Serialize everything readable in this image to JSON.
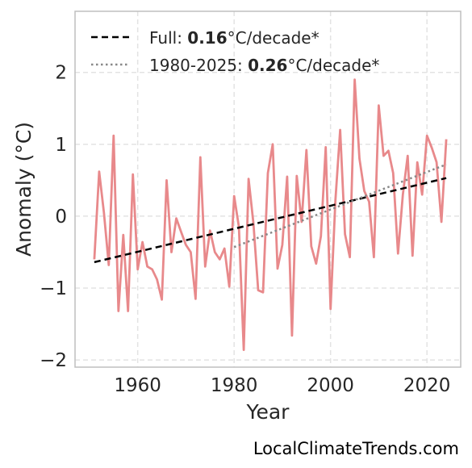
{
  "chart_data": {
    "type": "line",
    "title": "",
    "xlabel": "Year",
    "ylabel": "Anomaly (°C)",
    "xlim": [
      1947,
      2027
    ],
    "ylim": [
      -2.1,
      2.85
    ],
    "xticks": [
      1960,
      1980,
      2000,
      2020
    ],
    "yticks": [
      -2,
      -1,
      0,
      1,
      2
    ],
    "ytick_labels": [
      "−2",
      "−1",
      "0",
      "1",
      "2"
    ],
    "grid": true,
    "legend_placement": "top-left",
    "series": [
      {
        "color": "#e8898b",
        "style": "solid",
        "x": [
          1951,
          1952,
          1953,
          1954,
          1955,
          1956,
          1957,
          1958,
          1959,
          1960,
          1961,
          1962,
          1963,
          1964,
          1965,
          1966,
          1967,
          1968,
          1969,
          1970,
          1971,
          1972,
          1973,
          1974,
          1975,
          1976,
          1977,
          1978,
          1979,
          1980,
          1981,
          1982,
          1983,
          1984,
          1985,
          1986,
          1987,
          1988,
          1989,
          1990,
          1991,
          1992,
          1993,
          1994,
          1995,
          1996,
          1997,
          1998,
          1999,
          2000,
          2001,
          2002,
          2003,
          2004,
          2005,
          2006,
          2007,
          2008,
          2009,
          2010,
          2011,
          2012,
          2013,
          2014,
          2015,
          2016,
          2017,
          2018,
          2019,
          2020,
          2021,
          2022,
          2023,
          2024
        ],
        "values": [
          -0.6,
          0.62,
          0.05,
          -0.68,
          1.12,
          -1.32,
          -0.26,
          -1.32,
          0.58,
          -0.74,
          -0.36,
          -0.7,
          -0.74,
          -0.88,
          -1.16,
          0.5,
          -0.5,
          -0.03,
          -0.22,
          -0.4,
          -0.5,
          -1.15,
          0.82,
          -0.7,
          -0.2,
          -0.5,
          -0.6,
          -0.45,
          -0.98,
          0.28,
          -0.15,
          -1.86,
          0.52,
          -0.1,
          -1.03,
          -1.06,
          0.6,
          1.0,
          -0.73,
          -0.4,
          0.55,
          -1.66,
          0.56,
          -0.08,
          0.92,
          -0.42,
          -0.66,
          -0.28,
          0.96,
          -1.29,
          0.22,
          1.2,
          -0.25,
          -0.57,
          1.9,
          0.8,
          0.35,
          0.2,
          -0.57,
          1.54,
          0.84,
          0.91,
          0.6,
          -0.52,
          0.3,
          0.84,
          -0.55,
          0.75,
          0.3,
          1.12,
          0.95,
          0.75,
          -0.08,
          1.07
        ]
      },
      {
        "name": "Full",
        "color": "#000000",
        "style": "dashed",
        "x": [
          1951,
          2024
        ],
        "values": [
          -0.64,
          0.53
        ]
      },
      {
        "name": "1980-2025",
        "color": "#888888",
        "style": "dotted",
        "x": [
          1980,
          2024
        ],
        "values": [
          -0.43,
          0.72
        ]
      }
    ]
  },
  "legend": [
    {
      "prefix": "Full: ",
      "value": "0.16",
      "suffix": "°C/decade*"
    },
    {
      "prefix": "1980-2025: ",
      "value": "0.26",
      "suffix": "°C/decade*"
    }
  ],
  "watermark": "LocalClimateTrends.com"
}
